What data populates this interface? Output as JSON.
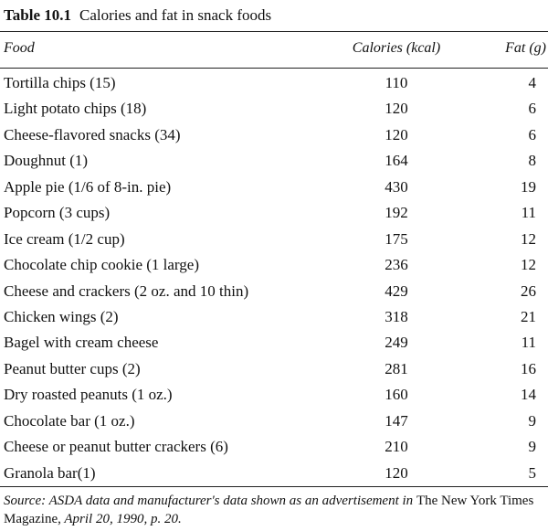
{
  "table": {
    "number": "Table 10.1",
    "title": "Calories and fat in snack foods",
    "headers": {
      "food": "Food",
      "calories": "Calories (kcal)",
      "fat": "Fat (g)"
    },
    "rows": [
      {
        "food": "Tortilla chips (15)",
        "calories": "110",
        "fat": "4"
      },
      {
        "food": "Light potato chips (18)",
        "calories": "120",
        "fat": "6"
      },
      {
        "food": "Cheese-flavored snacks (34)",
        "calories": "120",
        "fat": "6"
      },
      {
        "food": "Doughnut (1)",
        "calories": "164",
        "fat": "8"
      },
      {
        "food": "Apple pie (1/6 of 8-in. pie)",
        "calories": "430",
        "fat": "19"
      },
      {
        "food": "Popcorn (3 cups)",
        "calories": "192",
        "fat": "11"
      },
      {
        "food": "Ice cream (1/2 cup)",
        "calories": "175",
        "fat": "12"
      },
      {
        "food": "Chocolate chip cookie (1 large)",
        "calories": "236",
        "fat": "12"
      },
      {
        "food": "Cheese and crackers (2 oz. and 10 thin)",
        "calories": "429",
        "fat": "26"
      },
      {
        "food": "Chicken wings (2)",
        "calories": "318",
        "fat": "21"
      },
      {
        "food": "Bagel with cream cheese",
        "calories": "249",
        "fat": "11"
      },
      {
        "food": "Peanut butter cups (2)",
        "calories": "281",
        "fat": "16"
      },
      {
        "food": "Dry roasted peanuts (1 oz.)",
        "calories": "160",
        "fat": "14"
      },
      {
        "food": "Chocolate bar (1 oz.)",
        "calories": "147",
        "fat": "9"
      },
      {
        "food": "Cheese or peanut butter crackers (6)",
        "calories": "210",
        "fat": "9"
      },
      {
        "food": "Granola bar(1)",
        "calories": "120",
        "fat": "5"
      }
    ],
    "source": {
      "part1": "Source: ASDA data and manufacturer's data shown as an advertisement in ",
      "part2": "The New York Times Magazine,",
      "part3": " April 20, 1990, p. 20."
    }
  }
}
